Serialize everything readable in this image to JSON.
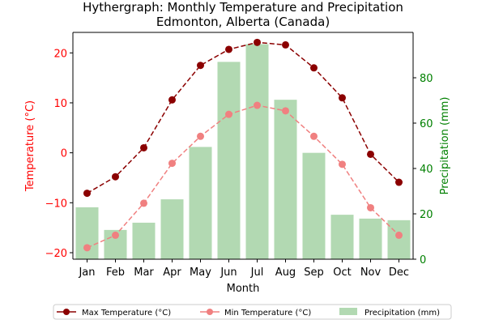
{
  "chart_data": {
    "type": "bar+line",
    "title": "Hythergraph: Monthly Temperature and Precipitation",
    "subtitle": "Edmonton, Alberta (Canada)",
    "xlabel": "Month",
    "ylabel_left": "Temperature (°C)",
    "ylabel_right": "Precipitation (mm)",
    "categories": [
      "Jan",
      "Feb",
      "Mar",
      "Apr",
      "May",
      "Jun",
      "Jul",
      "Aug",
      "Sep",
      "Oct",
      "Nov",
      "Dec"
    ],
    "y_left_lim": [
      -21.3,
      24.1
    ],
    "y_left_ticks": [
      -20,
      -10,
      0,
      10,
      20
    ],
    "y_right_lim": [
      0,
      100
    ],
    "y_right_ticks": [
      0,
      20,
      40,
      60,
      80
    ],
    "legend_position": "bottom-center",
    "colors": {
      "max_temp": "#8b0000",
      "min_temp": "#f08080",
      "precip": "#b2d9b2",
      "left_axis": "#ff0000",
      "right_axis": "#008000"
    },
    "series": [
      {
        "name": "Max Temperature (°C)",
        "kind": "line",
        "axis": "left",
        "values": [
          -8.1,
          -4.8,
          1.0,
          10.6,
          17.5,
          20.7,
          22.1,
          21.6,
          17.0,
          11.0,
          -0.3,
          -5.9
        ]
      },
      {
        "name": "Min Temperature (°C)",
        "kind": "line",
        "axis": "left",
        "values": [
          -19.0,
          -16.5,
          -10.1,
          -2.1,
          3.3,
          7.7,
          9.5,
          8.4,
          3.3,
          -2.3,
          -11.0,
          -16.5
        ]
      },
      {
        "name": "Precipitation (mm)",
        "kind": "bar",
        "axis": "right",
        "values": [
          22.9,
          12.9,
          16.1,
          26.4,
          49.5,
          87.0,
          94.8,
          70.3,
          46.9,
          19.6,
          17.9,
          17.2
        ]
      }
    ]
  }
}
